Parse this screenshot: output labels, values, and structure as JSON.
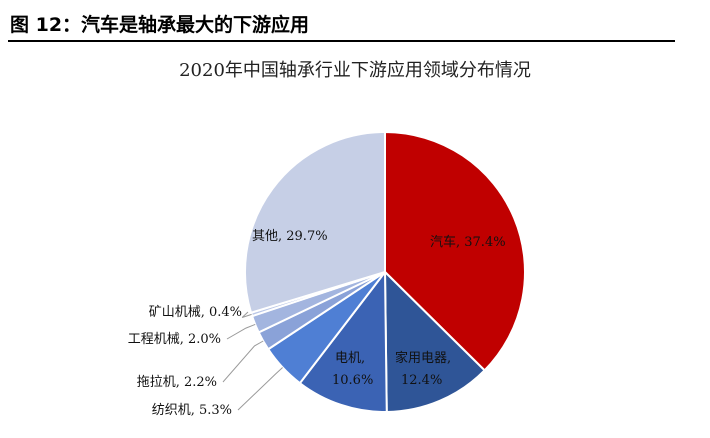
{
  "figure": {
    "title": "图 12：汽车是轴承最大的下游应用"
  },
  "colors": {
    "auto": "#c00000",
    "appliances": "#2f5597",
    "motors": "#3b63b4",
    "textile": "#4f7fd4",
    "tractor": "#8aa2d8",
    "engineering": "#a3b5df",
    "mining": "#b9c6e6",
    "other": "#c6cfe6",
    "leader": "#9a9a9a"
  },
  "chart_data": {
    "type": "pie",
    "title": "2020年中国轴承行业下游应用领域分布情况",
    "slices": [
      {
        "key": "auto",
        "name": "汽车",
        "value": 37.4,
        "label": "汽车, 37.4%"
      },
      {
        "key": "appliances",
        "name": "家用电器",
        "value": 12.4,
        "label_line1": "家用电器,",
        "label_line2": "12.4%"
      },
      {
        "key": "motors",
        "name": "电机",
        "value": 10.6,
        "label_line1": "电机,",
        "label_line2": "10.6%"
      },
      {
        "key": "textile",
        "name": "纺织机",
        "value": 5.3,
        "label": "纺织机, 5.3%"
      },
      {
        "key": "tractor",
        "name": "拖拉机",
        "value": 2.2,
        "label": "拖拉机, 2.2%"
      },
      {
        "key": "engineering",
        "name": "工程机械",
        "value": 2.0,
        "label": "工程机械, 2.0%"
      },
      {
        "key": "mining",
        "name": "矿山机械",
        "value": 0.4,
        "label": "矿山机械, 0.4%"
      },
      {
        "key": "other",
        "name": "其他",
        "value": 29.7,
        "label": "其他, 29.7%"
      }
    ]
  }
}
